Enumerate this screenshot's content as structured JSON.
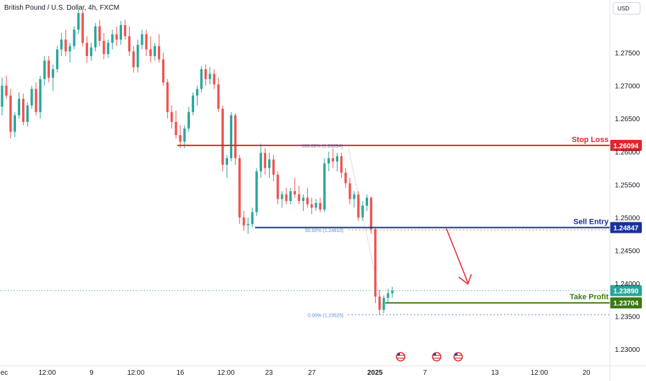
{
  "header": {
    "title": "British Pound / U.S. Dollar, 4h, FXCM",
    "currency": "USD"
  },
  "chart_data": {
    "type": "candlestick",
    "title": "British Pound / U.S. Dollar, 4h, FXCM",
    "ylim": [
      1.2275,
      1.283
    ],
    "y_ticks": [
      "1.27500",
      "1.27000",
      "1.26500",
      "1.26000",
      "1.25500",
      "1.25000",
      "1.24500",
      "1.24000",
      "1.23500",
      "1.23000"
    ],
    "x_ticks": [
      "ec",
      "12:00",
      "9",
      "12:00",
      "16",
      "12:00",
      "23",
      "27",
      "2025",
      "7",
      "13",
      "12:00",
      "20"
    ],
    "levels": [
      {
        "name": "Stop Loss",
        "value": 1.26094,
        "label": "1.26094",
        "color": "#e3242b"
      },
      {
        "name": "Sell Entry",
        "value": 1.24847,
        "label": "1.24847",
        "color": "#1a2fa0"
      },
      {
        "name": "Take Profit",
        "value": 1.23704,
        "label": "1.23704",
        "color": "#3b7a12"
      }
    ],
    "current_price": {
      "value": 1.2389,
      "label": "1.23890",
      "color": "#26a69a"
    },
    "fibonacci": [
      {
        "label": "100.00% (1.26094)",
        "value": 1.26094
      },
      {
        "label": "50.00% (1.24810)",
        "value": 1.2481
      },
      {
        "label": "0.00% (1.23525)",
        "value": 1.23525
      }
    ],
    "colors": {
      "up": "#26a69a",
      "down": "#ef5350",
      "grid": "#f0f3fa",
      "axis_text": "#131722"
    },
    "candles": [
      {
        "o": 1.2668,
        "h": 1.2712,
        "l": 1.2655,
        "c": 1.27
      },
      {
        "o": 1.27,
        "h": 1.2715,
        "l": 1.268,
        "c": 1.2685
      },
      {
        "o": 1.2685,
        "h": 1.2695,
        "l": 1.262,
        "c": 1.263
      },
      {
        "o": 1.263,
        "h": 1.266,
        "l": 1.2622,
        "c": 1.2655
      },
      {
        "o": 1.2655,
        "h": 1.269,
        "l": 1.265,
        "c": 1.268
      },
      {
        "o": 1.268,
        "h": 1.2688,
        "l": 1.264,
        "c": 1.2645
      },
      {
        "o": 1.2645,
        "h": 1.2675,
        "l": 1.2638,
        "c": 1.267
      },
      {
        "o": 1.267,
        "h": 1.27,
        "l": 1.2665,
        "c": 1.2695
      },
      {
        "o": 1.2695,
        "h": 1.2705,
        "l": 1.2655,
        "c": 1.266
      },
      {
        "o": 1.266,
        "h": 1.2715,
        "l": 1.265,
        "c": 1.271
      },
      {
        "o": 1.271,
        "h": 1.2745,
        "l": 1.27,
        "c": 1.2738
      },
      {
        "o": 1.2738,
        "h": 1.2745,
        "l": 1.2705,
        "c": 1.2712
      },
      {
        "o": 1.2712,
        "h": 1.2732,
        "l": 1.2692,
        "c": 1.2725
      },
      {
        "o": 1.2725,
        "h": 1.276,
        "l": 1.272,
        "c": 1.2755
      },
      {
        "o": 1.2755,
        "h": 1.278,
        "l": 1.2745,
        "c": 1.277
      },
      {
        "o": 1.277,
        "h": 1.2785,
        "l": 1.2745,
        "c": 1.2752
      },
      {
        "o": 1.2752,
        "h": 1.2765,
        "l": 1.2735,
        "c": 1.276
      },
      {
        "o": 1.276,
        "h": 1.279,
        "l": 1.2755,
        "c": 1.2785
      },
      {
        "o": 1.2785,
        "h": 1.2815,
        "l": 1.2778,
        "c": 1.281
      },
      {
        "o": 1.281,
        "h": 1.2815,
        "l": 1.276,
        "c": 1.2765
      },
      {
        "o": 1.2765,
        "h": 1.2775,
        "l": 1.2735,
        "c": 1.2745
      },
      {
        "o": 1.2745,
        "h": 1.2765,
        "l": 1.2738,
        "c": 1.2758
      },
      {
        "o": 1.2758,
        "h": 1.2795,
        "l": 1.2752,
        "c": 1.279
      },
      {
        "o": 1.279,
        "h": 1.28,
        "l": 1.276,
        "c": 1.2768
      },
      {
        "o": 1.2768,
        "h": 1.278,
        "l": 1.274,
        "c": 1.2748
      },
      {
        "o": 1.2748,
        "h": 1.277,
        "l": 1.2742,
        "c": 1.2765
      },
      {
        "o": 1.2765,
        "h": 1.2785,
        "l": 1.2755,
        "c": 1.2778
      },
      {
        "o": 1.2778,
        "h": 1.279,
        "l": 1.276,
        "c": 1.277
      },
      {
        "o": 1.277,
        "h": 1.2798,
        "l": 1.2762,
        "c": 1.2792
      },
      {
        "o": 1.2792,
        "h": 1.28,
        "l": 1.277,
        "c": 1.2775
      },
      {
        "o": 1.2775,
        "h": 1.279,
        "l": 1.2745,
        "c": 1.2752
      },
      {
        "o": 1.2752,
        "h": 1.276,
        "l": 1.272,
        "c": 1.2728
      },
      {
        "o": 1.2728,
        "h": 1.277,
        "l": 1.272,
        "c": 1.2762
      },
      {
        "o": 1.2762,
        "h": 1.2785,
        "l": 1.2755,
        "c": 1.2778
      },
      {
        "o": 1.2778,
        "h": 1.2785,
        "l": 1.2745,
        "c": 1.2755
      },
      {
        "o": 1.2755,
        "h": 1.2775,
        "l": 1.2735,
        "c": 1.2745
      },
      {
        "o": 1.2745,
        "h": 1.2765,
        "l": 1.2738,
        "c": 1.276
      },
      {
        "o": 1.276,
        "h": 1.2778,
        "l": 1.2735,
        "c": 1.274
      },
      {
        "o": 1.274,
        "h": 1.275,
        "l": 1.27,
        "c": 1.2705
      },
      {
        "o": 1.2705,
        "h": 1.271,
        "l": 1.265,
        "c": 1.266
      },
      {
        "o": 1.266,
        "h": 1.267,
        "l": 1.2635,
        "c": 1.2645
      },
      {
        "o": 1.2645,
        "h": 1.2662,
        "l": 1.262,
        "c": 1.2625
      },
      {
        "o": 1.2625,
        "h": 1.264,
        "l": 1.2605,
        "c": 1.2615
      },
      {
        "o": 1.2615,
        "h": 1.264,
        "l": 1.2605,
        "c": 1.2635
      },
      {
        "o": 1.2635,
        "h": 1.2668,
        "l": 1.263,
        "c": 1.266
      },
      {
        "o": 1.266,
        "h": 1.269,
        "l": 1.2655,
        "c": 1.2685
      },
      {
        "o": 1.2685,
        "h": 1.27,
        "l": 1.267,
        "c": 1.2695
      },
      {
        "o": 1.2695,
        "h": 1.273,
        "l": 1.269,
        "c": 1.2725
      },
      {
        "o": 1.2725,
        "h": 1.2732,
        "l": 1.27,
        "c": 1.271
      },
      {
        "o": 1.271,
        "h": 1.2728,
        "l": 1.2702,
        "c": 1.2718
      },
      {
        "o": 1.2718,
        "h": 1.2725,
        "l": 1.2695,
        "c": 1.2702
      },
      {
        "o": 1.2702,
        "h": 1.2712,
        "l": 1.266,
        "c": 1.2665
      },
      {
        "o": 1.2665,
        "h": 1.267,
        "l": 1.257,
        "c": 1.258
      },
      {
        "o": 1.258,
        "h": 1.2595,
        "l": 1.256,
        "c": 1.259
      },
      {
        "o": 1.259,
        "h": 1.266,
        "l": 1.2585,
        "c": 1.2655
      },
      {
        "o": 1.2655,
        "h": 1.2658,
        "l": 1.258,
        "c": 1.259
      },
      {
        "o": 1.259,
        "h": 1.2595,
        "l": 1.249,
        "c": 1.25
      },
      {
        "o": 1.25,
        "h": 1.251,
        "l": 1.248,
        "c": 1.2488
      },
      {
        "o": 1.2488,
        "h": 1.25,
        "l": 1.2475,
        "c": 1.249
      },
      {
        "o": 1.249,
        "h": 1.2515,
        "l": 1.2485,
        "c": 1.2508
      },
      {
        "o": 1.2508,
        "h": 1.2575,
        "l": 1.2502,
        "c": 1.257
      },
      {
        "o": 1.257,
        "h": 1.2612,
        "l": 1.256,
        "c": 1.2598
      },
      {
        "o": 1.2598,
        "h": 1.2605,
        "l": 1.2565,
        "c": 1.2575
      },
      {
        "o": 1.2575,
        "h": 1.2598,
        "l": 1.256,
        "c": 1.2588
      },
      {
        "o": 1.2588,
        "h": 1.2595,
        "l": 1.2555,
        "c": 1.2565
      },
      {
        "o": 1.2565,
        "h": 1.257,
        "l": 1.252,
        "c": 1.2528
      },
      {
        "o": 1.2528,
        "h": 1.254,
        "l": 1.2515,
        "c": 1.2535
      },
      {
        "o": 1.2535,
        "h": 1.2545,
        "l": 1.252,
        "c": 1.2525
      },
      {
        "o": 1.2525,
        "h": 1.2545,
        "l": 1.252,
        "c": 1.254
      },
      {
        "o": 1.254,
        "h": 1.256,
        "l": 1.253,
        "c": 1.2535
      },
      {
        "o": 1.2535,
        "h": 1.2548,
        "l": 1.252,
        "c": 1.2525
      },
      {
        "o": 1.2525,
        "h": 1.2535,
        "l": 1.251,
        "c": 1.253
      },
      {
        "o": 1.253,
        "h": 1.2545,
        "l": 1.2515,
        "c": 1.252
      },
      {
        "o": 1.252,
        "h": 1.253,
        "l": 1.2505,
        "c": 1.2515
      },
      {
        "o": 1.2515,
        "h": 1.2528,
        "l": 1.251,
        "c": 1.2522
      },
      {
        "o": 1.2522,
        "h": 1.253,
        "l": 1.2508,
        "c": 1.2512
      },
      {
        "o": 1.2512,
        "h": 1.259,
        "l": 1.2508,
        "c": 1.2582
      },
      {
        "o": 1.2582,
        "h": 1.26,
        "l": 1.257,
        "c": 1.259
      },
      {
        "o": 1.259,
        "h": 1.2605,
        "l": 1.2575,
        "c": 1.2585
      },
      {
        "o": 1.2585,
        "h": 1.2598,
        "l": 1.257,
        "c": 1.2593
      },
      {
        "o": 1.2593,
        "h": 1.2598,
        "l": 1.256,
        "c": 1.2568
      },
      {
        "o": 1.2568,
        "h": 1.2575,
        "l": 1.2545,
        "c": 1.2552
      },
      {
        "o": 1.2552,
        "h": 1.256,
        "l": 1.252,
        "c": 1.2528
      },
      {
        "o": 1.2528,
        "h": 1.254,
        "l": 1.2515,
        "c": 1.2535
      },
      {
        "o": 1.2535,
        "h": 1.254,
        "l": 1.2495,
        "c": 1.25
      },
      {
        "o": 1.25,
        "h": 1.2525,
        "l": 1.2495,
        "c": 1.2518
      },
      {
        "o": 1.2518,
        "h": 1.2535,
        "l": 1.251,
        "c": 1.253
      },
      {
        "o": 1.253,
        "h": 1.2532,
        "l": 1.2475,
        "c": 1.2482
      },
      {
        "o": 1.2482,
        "h": 1.2485,
        "l": 1.237,
        "c": 1.238
      },
      {
        "o": 1.238,
        "h": 1.239,
        "l": 1.2352,
        "c": 1.236
      },
      {
        "o": 1.236,
        "h": 1.2382,
        "l": 1.2355,
        "c": 1.2378
      },
      {
        "o": 1.2378,
        "h": 1.2392,
        "l": 1.237,
        "c": 1.2385
      },
      {
        "o": 1.2385,
        "h": 1.2395,
        "l": 1.2378,
        "c": 1.2389
      }
    ]
  },
  "annotations": {
    "arrow": "down-arrow"
  }
}
